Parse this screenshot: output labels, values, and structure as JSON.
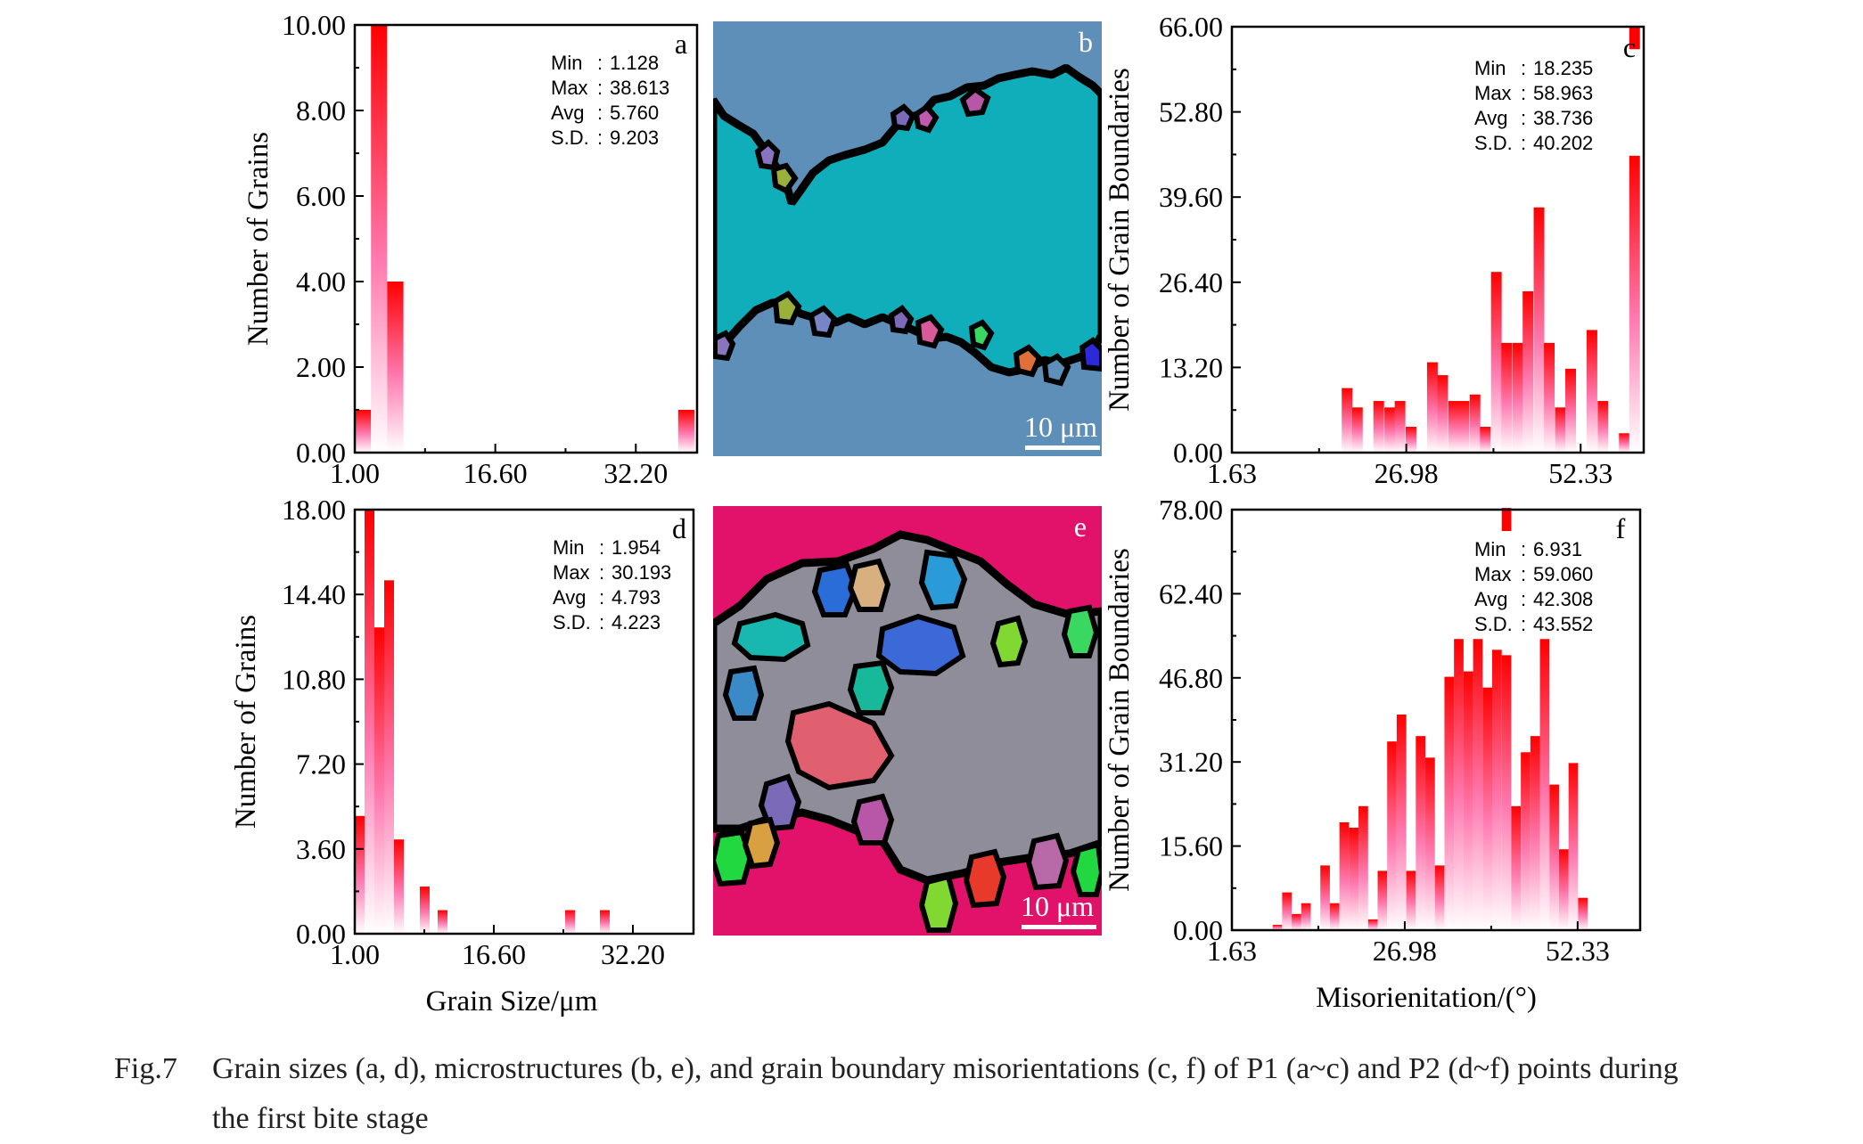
{
  "chart_data": [
    {
      "panel": "a",
      "type": "bar",
      "ylabel": "Number of Grains",
      "xlim": [
        1.0,
        39.0
      ],
      "ylim": [
        0,
        10
      ],
      "xticks": [
        "1.00",
        "16.60",
        "32.20"
      ],
      "yticks": [
        "0.00",
        "2.00",
        "4.00",
        "6.00",
        "8.00",
        "10.00"
      ],
      "bin_width": 1.8,
      "x": [
        1.0,
        2.8,
        4.6,
        36.9
      ],
      "values": [
        1,
        10,
        4,
        1
      ],
      "stats": [
        {
          "label": "Min",
          "value": "1.128"
        },
        {
          "label": "Max",
          "value": "38.613"
        },
        {
          "label": "Avg",
          "value": "5.760"
        },
        {
          "label": "S.D.",
          "value": "9.203"
        }
      ]
    },
    {
      "panel": "c",
      "type": "bar",
      "ylabel": "Number of Grain Boundaries",
      "xlim": [
        1.63,
        61.5
      ],
      "ylim": [
        0,
        66
      ],
      "xticks": [
        "1.63",
        "26.98",
        "52.33"
      ],
      "yticks": [
        "0.00",
        "13.20",
        "26.40",
        "39.60",
        "52.80",
        "66.00"
      ],
      "bin_width": 1.55,
      "x": [
        17.6,
        19.1,
        20.7,
        22.2,
        23.8,
        25.3,
        26.9,
        28.4,
        30.0,
        31.5,
        33.1,
        34.6,
        36.2,
        37.7,
        39.3,
        40.8,
        42.4,
        43.9,
        45.5,
        47.0,
        48.6,
        50.1,
        51.7,
        53.2,
        54.8,
        56.3,
        57.9,
        59.4
      ],
      "values": [
        10,
        7,
        0,
        8,
        7,
        8,
        4,
        0,
        14,
        12,
        8,
        8,
        9,
        4,
        28,
        17,
        17,
        25,
        38,
        17,
        7,
        13,
        0,
        19,
        8,
        0,
        3,
        46
      ],
      "outlier": {
        "x": 59.4,
        "value": 65
      },
      "stats": [
        {
          "label": "Min",
          "value": "18.235"
        },
        {
          "label": "Max",
          "value": "58.963"
        },
        {
          "label": "Avg",
          "value": "38.736"
        },
        {
          "label": "S.D.",
          "value": "40.202"
        }
      ]
    },
    {
      "panel": "d",
      "type": "bar",
      "ylabel": "Number of Grains",
      "xlabel": "Grain Size/μm",
      "xlim": [
        1.0,
        39.0
      ],
      "ylim": [
        0,
        18
      ],
      "xticks": [
        "1.00",
        "16.60",
        "32.20"
      ],
      "yticks": [
        "0.00",
        "3.60",
        "7.20",
        "10.80",
        "14.40",
        "18.00"
      ],
      "bin_width": 1.1,
      "x": [
        1.0,
        2.1,
        3.2,
        4.3,
        5.4,
        8.3,
        10.3,
        24.6,
        28.5
      ],
      "values": [
        5,
        18,
        13,
        15,
        4,
        2,
        1,
        1,
        1
      ],
      "stats": [
        {
          "label": "Min",
          "value": "1.954"
        },
        {
          "label": "Max",
          "value": "30.193"
        },
        {
          "label": "Avg",
          "value": "4.793"
        },
        {
          "label": "S.D.",
          "value": "4.223"
        }
      ]
    },
    {
      "panel": "f",
      "type": "bar",
      "ylabel": "Number of Grain Boundaries",
      "xlabel": "Misorienitation/(°)",
      "xlim": [
        1.63,
        61.5
      ],
      "ylim": [
        0,
        78
      ],
      "xticks": [
        "1.63",
        "26.98",
        "52.33"
      ],
      "yticks": [
        "0.00",
        "15.60",
        "31.20",
        "46.80",
        "62.40",
        "78.00"
      ],
      "bin_width": 1.4,
      "x": [
        7.6,
        9.0,
        10.4,
        11.8,
        13.2,
        14.6,
        16.0,
        17.4,
        18.8,
        20.2,
        21.6,
        23.0,
        24.4,
        25.8,
        27.2,
        28.6,
        30.0,
        31.4,
        32.8,
        34.2,
        35.6,
        37.0,
        38.4,
        39.8,
        41.2,
        42.6,
        44.0,
        45.4,
        46.8,
        48.2,
        49.6,
        51.0,
        52.4,
        53.8,
        55.2,
        56.6,
        58.0
      ],
      "values": [
        1,
        7,
        3,
        5,
        0,
        12,
        5,
        20,
        19,
        23,
        2,
        11,
        35,
        40,
        11,
        36,
        32,
        12,
        47,
        54,
        48,
        54,
        45,
        52,
        51,
        23,
        33,
        36,
        54,
        27,
        15,
        31,
        6,
        0,
        0,
        0,
        0
      ],
      "outlier": {
        "x": 41.2,
        "value": 77
      },
      "stats": [
        {
          "label": "Min",
          "value": "6.931"
        },
        {
          "label": "Max",
          "value": "59.060"
        },
        {
          "label": "Avg",
          "value": "42.308"
        },
        {
          "label": "S.D.",
          "value": "43.552"
        }
      ]
    }
  ],
  "micrographs": {
    "b": {
      "label": "b",
      "scale": "10 μm"
    },
    "e": {
      "label": "e",
      "scale": "10 μm"
    }
  },
  "colors": {
    "bar_top": "#ff0000",
    "bar_bottom": "#ffffff",
    "axis": "#000000",
    "b_background": "#5e8fb8",
    "b_main_grain": "#10aebb",
    "e_background": "#e2126a",
    "e_grey": "#8f8d99"
  },
  "caption": {
    "figno": "Fig.7",
    "line1": "Grain sizes (a, d), microstructures (b, e), and grain boundary misorientations (c, f) of P1 (a~c) and P2 (d~f) points during",
    "line2": "the first bite stage"
  }
}
